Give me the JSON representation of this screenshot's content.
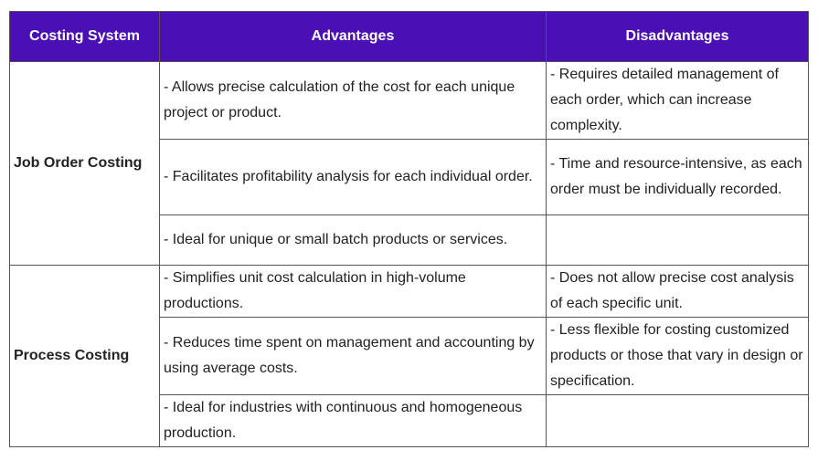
{
  "table": {
    "headers": [
      "Costing System",
      "Advantages",
      "Disadvantages"
    ],
    "groups": [
      {
        "system": "Job Order Costing",
        "rows": [
          {
            "advantage": "- Allows precise calculation of the cost for each unique project or product.",
            "disadvantage": "- Requires detailed management of each order, which can increase complexity."
          },
          {
            "advantage": "- Facilitates profitability analysis for each individual order.",
            "disadvantage": "- Time and resource-intensive, as each order must be individually recorded."
          },
          {
            "advantage": "- Ideal for unique or small batch products or services.",
            "disadvantage": ""
          }
        ]
      },
      {
        "system": "Process Costing",
        "rows": [
          {
            "advantage": "- Simplifies unit cost calculation in high-volume productions.",
            "disadvantage": "- Does not allow precise cost analysis of each specific unit."
          },
          {
            "advantage": "- Reduces time spent on management and accounting by using average costs.",
            "disadvantage": "- Less flexible for costing customized products or those that vary in design or specification."
          },
          {
            "advantage": "- Ideal for industries with continuous and homogeneous production.",
            "disadvantage": ""
          }
        ]
      }
    ]
  }
}
